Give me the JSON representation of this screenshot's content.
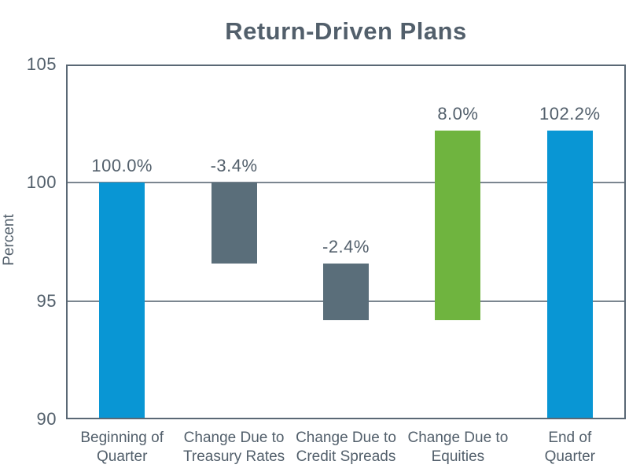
{
  "chart_data": {
    "type": "bar",
    "subtype": "waterfall",
    "title": "Return-Driven Plans",
    "xlabel": "",
    "ylabel": "Percent",
    "ylim": [
      90,
      105
    ],
    "yticks": [
      105,
      100,
      95,
      90
    ],
    "gridlines": [
      100,
      95
    ],
    "grid": "horizontal only",
    "legend": "none",
    "categories": [
      "Beginning of\nQuarter",
      "Change Due to\nTreasury Rates",
      "Change Due to\nCredit Spreads",
      "Change Due to\nEquities",
      "End of\nQuarter"
    ],
    "bars": [
      {
        "name": "beginning-of-quarter",
        "label": "100.0%",
        "value": 100.0,
        "start": 90,
        "end": 100,
        "color": "blue"
      },
      {
        "name": "change-treasury-rates",
        "label": "-3.4%",
        "value": -3.4,
        "start": 100,
        "end": 96.6,
        "color": "gray"
      },
      {
        "name": "change-credit-spreads",
        "label": "-2.4%",
        "value": -2.4,
        "start": 96.6,
        "end": 94.2,
        "color": "gray"
      },
      {
        "name": "change-equities",
        "label": "8.0%",
        "value": 8.0,
        "start": 94.2,
        "end": 102.2,
        "color": "green"
      },
      {
        "name": "end-of-quarter",
        "label": "102.2%",
        "value": 102.2,
        "start": 90,
        "end": 102.2,
        "color": "blue"
      }
    ],
    "colors": {
      "blue": "#0996d4",
      "green": "#6fb43f",
      "gray": "#5a6e7a",
      "text": "#525f6b",
      "axis_border": "#5a6875",
      "gridline": "#7b8690"
    }
  }
}
